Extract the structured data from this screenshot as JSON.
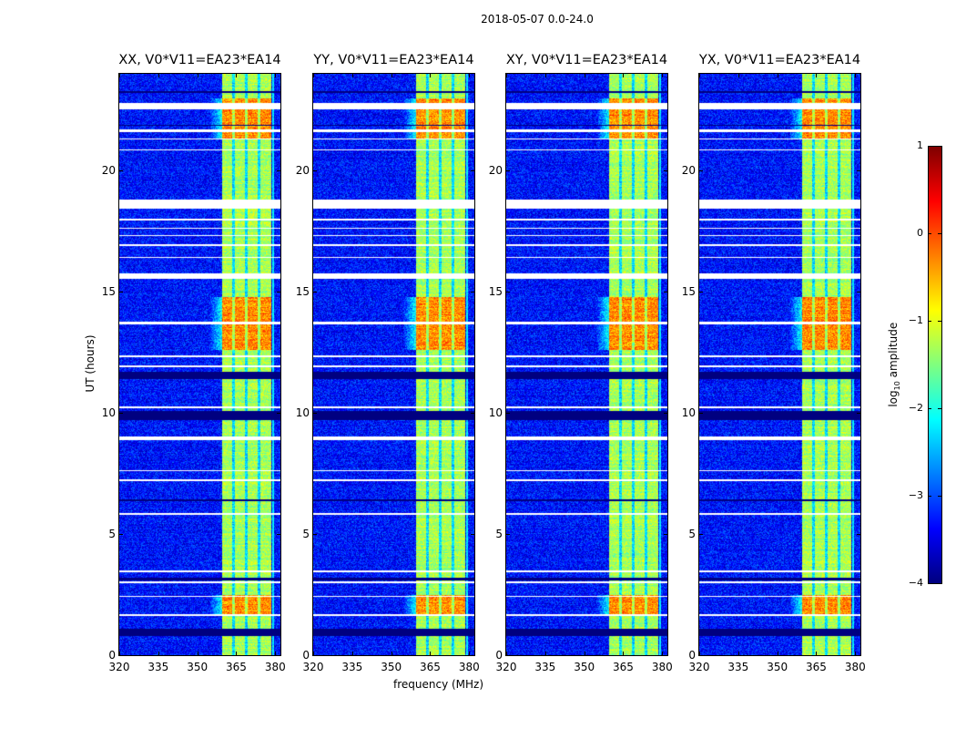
{
  "chart_data": {
    "type": "heatmap",
    "title": "2018-05-07 0.0-24.0",
    "xlabel": "frequency (MHz)",
    "ylabel": "UT (hours)",
    "xlim": [
      320,
      382
    ],
    "ylim": [
      0,
      24
    ],
    "xticks": [
      320,
      335,
      350,
      365,
      380
    ],
    "yticks": [
      0,
      5,
      10,
      15,
      20
    ],
    "panels": [
      {
        "title": "XX, V0*V11=EA23*EA14"
      },
      {
        "title": "YY, V0*V11=EA23*EA14"
      },
      {
        "title": "XY, V0*V11=EA23*EA14"
      },
      {
        "title": "YX, V0*V11=EA23*EA14"
      }
    ],
    "colorbar": {
      "label_main": "log",
      "label_sub": "10",
      "label_rest": " amplitude",
      "range": [
        -4,
        1
      ],
      "ticks": [
        1,
        0,
        -1,
        -2,
        -3,
        -4
      ],
      "tick_labels": [
        "1",
        "0",
        "−1",
        "−2",
        "−3",
        "−4"
      ],
      "colormap": "jet"
    },
    "signal_band_mhz": [
      359.5,
      378.5
    ],
    "subband_edges_mhz": [
      364,
      368.8,
      373.7
    ],
    "background_log_amplitude": -3.3,
    "band_log_amplitude": -1.3,
    "strong_rfi_hours": [
      [
        1.7,
        2.5
      ],
      [
        12.6,
        14.8
      ],
      [
        21.3,
        23.0
      ]
    ],
    "flagged_hours": [
      [
        18.45,
        18.8
      ],
      [
        15.55,
        15.75
      ],
      [
        13.65,
        13.75
      ],
      [
        8.88,
        9.02
      ],
      [
        3.42,
        3.48
      ],
      [
        2.97,
        3.03
      ],
      [
        2.4,
        2.46
      ],
      [
        1.62,
        1.68
      ],
      [
        22.55,
        22.8
      ],
      [
        21.6,
        21.7
      ],
      [
        21.28,
        21.33
      ],
      [
        20.84,
        20.88
      ],
      [
        17.95,
        18.0
      ],
      [
        17.6,
        17.65
      ],
      [
        17.3,
        17.35
      ],
      [
        16.9,
        16.95
      ],
      [
        16.4,
        16.45
      ],
      [
        12.3,
        12.36
      ],
      [
        11.9,
        11.95
      ],
      [
        10.2,
        10.26
      ],
      [
        7.6,
        7.65
      ],
      [
        7.2,
        7.26
      ],
      [
        5.8,
        5.85
      ]
    ],
    "zero_hours": [
      [
        23.2,
        23.3
      ],
      [
        21.85,
        21.9
      ],
      [
        11.4,
        11.7
      ],
      [
        9.7,
        10.1
      ],
      [
        6.35,
        6.45
      ],
      [
        3.1,
        3.18
      ],
      [
        0.8,
        1.1
      ]
    ]
  }
}
